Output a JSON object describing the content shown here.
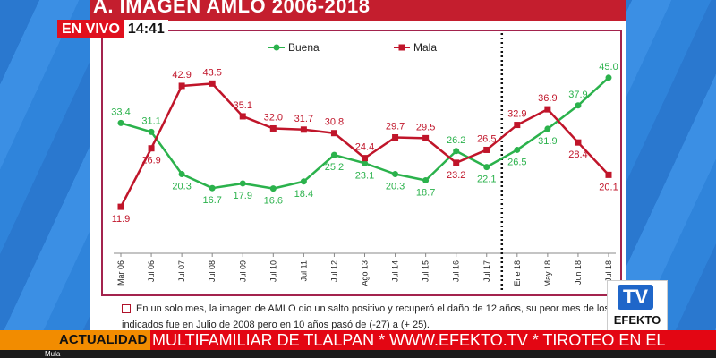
{
  "slide": {
    "title": "A. IMAGEN AMLO 2006-2018",
    "footnote": "En un solo mes, la imagen de AMLO dio un salto positivo y recuperó el daño de 12 años, su peor mes de los indicados fue en Julio de 2008 pero en 10 años pasó de (-27) a (+ 25)."
  },
  "live": {
    "label": "EN VIVO",
    "clock": "14:41"
  },
  "logo": {
    "tv": "TV",
    "name": "EFEKTO"
  },
  "ticker": {
    "label": "ACTUALIDAD",
    "text": "MULTIFAMILIAR DE TLALPAN * WWW.EFEKTO.TV * TIROTEO EN EL"
  },
  "bottom": {
    "label": "Mula"
  },
  "colors": {
    "buena": "#2bb24c",
    "mala": "#c0152a",
    "accent": "#c41e2e"
  },
  "chart_data": {
    "type": "line",
    "categories": [
      "Mar 06",
      "Jul 06",
      "Jul 07",
      "Jul 08",
      "Jul 09",
      "Jul 10",
      "Jul 11",
      "Jul 12",
      "Ago 13",
      "Jul 14",
      "Jul 15",
      "Jul 16",
      "Jul 17",
      "Ene 18",
      "May 18",
      "Jun 18",
      "Jul 18"
    ],
    "series": [
      {
        "name": "Buena",
        "color": "#2bb24c",
        "values": [
          33.4,
          31.1,
          20.3,
          16.7,
          17.9,
          16.6,
          18.4,
          25.2,
          23.1,
          20.3,
          18.7,
          26.2,
          22.1,
          26.5,
          31.9,
          37.9,
          45.0
        ]
      },
      {
        "name": "Mala",
        "color": "#c0152a",
        "values": [
          11.9,
          26.9,
          42.9,
          43.5,
          35.1,
          32.0,
          31.7,
          30.8,
          24.4,
          29.7,
          29.5,
          23.2,
          26.5,
          32.9,
          36.9,
          28.4,
          20.1
        ]
      }
    ],
    "ylim": [
      0,
      50
    ],
    "divider_after": "Jul 17",
    "legend": "top-center"
  }
}
